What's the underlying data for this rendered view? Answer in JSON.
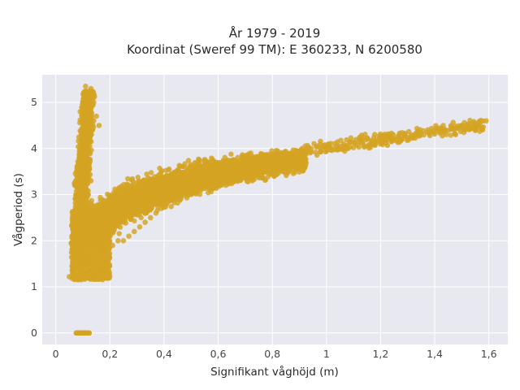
{
  "chart_data": {
    "type": "scatter",
    "title": "År 1979 - 2019",
    "subtitle": "Koordinat (Sweref 99 TM): E 360233, N 6200580",
    "xlabel": "Signifikant våghöjd (m)",
    "ylabel": "Vågperiod (s)",
    "xlim": [
      -0.05,
      1.67
    ],
    "ylim": [
      -0.25,
      5.6
    ],
    "xticks": [
      0,
      0.2,
      0.4,
      0.6,
      0.8,
      1,
      1.2,
      1.4,
      1.6
    ],
    "xtick_labels": [
      "0",
      "0,2",
      "0,4",
      "0,6",
      "0,8",
      "1",
      "1,2",
      "1,4",
      "1,6"
    ],
    "yticks": [
      0,
      1,
      2,
      3,
      4,
      5
    ],
    "ytick_labels": [
      "0",
      "1",
      "2",
      "3",
      "4",
      "5"
    ],
    "grid": true,
    "marker_color": "#d4a422",
    "background_color": "#e8e8f0",
    "series": [
      {
        "x": [
          0.05,
          0.06,
          0.07,
          0.08,
          0.09,
          0.1,
          0.11,
          0.12,
          0.13,
          0.14,
          0.15,
          0.16,
          0.17,
          0.18,
          0.2,
          0.22,
          0.24,
          0.26,
          0.28,
          0.3,
          0.32,
          0.34,
          0.36,
          0.38,
          0.4,
          0.42,
          0.44,
          0.46,
          0.48,
          0.5,
          0.52,
          0.54,
          0.56,
          0.58,
          0.6,
          0.62,
          0.64,
          0.66,
          0.68,
          0.7,
          0.72,
          0.74,
          0.76,
          0.78,
          0.8,
          0.82,
          0.84,
          0.86,
          0.88,
          0.9,
          0.92,
          0.94,
          0.96,
          0.98,
          1.0,
          1.02,
          1.04,
          1.06,
          1.08,
          1.1,
          1.12,
          1.14,
          1.16,
          1.18,
          1.2,
          1.22,
          1.24,
          1.26,
          1.28,
          1.3,
          1.32,
          1.34,
          1.36,
          1.38,
          1.4,
          1.42,
          1.44,
          1.46,
          1.48,
          1.5,
          1.52,
          1.55,
          1.57,
          1.59,
          0.07,
          0.08,
          0.09,
          0.1,
          0.11,
          0.12,
          0.13,
          0.14,
          0.15,
          0.16,
          0.09,
          0.1,
          0.11,
          0.12,
          0.13,
          0.14,
          0.11,
          0.12,
          0.13,
          0.15,
          0.17,
          0.19,
          0.21,
          0.23,
          0.25,
          0.27,
          0.29,
          0.31,
          0.33,
          0.35,
          0.37,
          0.39,
          0.41,
          0.43,
          0.45,
          0.47,
          0.49,
          0.51,
          0.53,
          0.55,
          0.57,
          0.59,
          0.08,
          0.09,
          0.1,
          0.11,
          0.12
        ],
        "y": [
          1.22,
          1.45,
          1.55,
          1.75,
          1.9,
          2.0,
          2.1,
          2.2,
          2.25,
          2.3,
          2.35,
          2.4,
          2.45,
          2.5,
          2.55,
          2.6,
          2.65,
          2.7,
          2.75,
          2.8,
          2.85,
          2.9,
          2.95,
          3.0,
          3.05,
          3.1,
          3.15,
          3.2,
          3.25,
          3.3,
          3.35,
          3.4,
          3.45,
          3.5,
          3.52,
          3.55,
          3.6,
          3.62,
          3.65,
          3.68,
          3.7,
          3.72,
          3.75,
          3.77,
          3.8,
          3.82,
          3.84,
          3.86,
          3.87,
          3.88,
          3.9,
          3.91,
          3.92,
          3.93,
          3.95,
          3.96,
          3.97,
          3.98,
          4.0,
          4.02,
          4.03,
          4.05,
          4.06,
          4.08,
          4.1,
          4.12,
          4.15,
          4.17,
          4.2,
          4.22,
          4.25,
          4.27,
          4.3,
          4.32,
          4.35,
          4.37,
          4.4,
          4.42,
          4.45,
          4.5,
          4.52,
          4.55,
          4.58,
          4.6,
          3.2,
          3.5,
          3.8,
          4.0,
          4.2,
          4.4,
          4.5,
          4.6,
          4.7,
          4.5,
          4.8,
          5.0,
          5.1,
          5.2,
          5.3,
          5.0,
          5.35,
          3.0,
          3.3,
          2.0,
          1.9,
          1.8,
          1.9,
          2.0,
          2.0,
          2.1,
          2.2,
          2.3,
          2.4,
          2.5,
          2.6,
          2.7,
          2.8,
          2.9,
          3.0,
          3.1,
          3.2,
          3.3,
          3.4,
          3.5,
          3.55,
          3.6,
          0,
          0,
          0,
          0,
          0
        ]
      }
    ]
  }
}
